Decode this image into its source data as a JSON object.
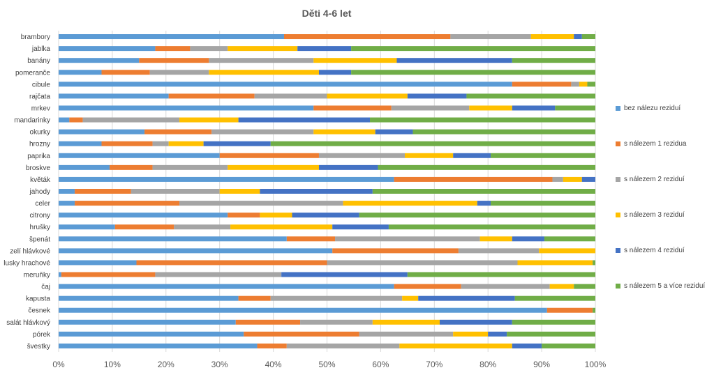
{
  "chart_data": {
    "type": "bar",
    "orientation": "horizontal",
    "stacked": "percent",
    "title": "Děti 4-6 let",
    "xlabel": "",
    "ylabel": "",
    "xlim": [
      0,
      100
    ],
    "x_ticks": [
      "0%",
      "10%",
      "20%",
      "30%",
      "40%",
      "50%",
      "60%",
      "70%",
      "80%",
      "90%",
      "100%"
    ],
    "grid": true,
    "legend_position": "right",
    "categories": [
      "brambory",
      "jablka",
      "banány",
      "pomeranče",
      "cibule",
      "rajčata",
      "mrkev",
      "mandarinky",
      "okurky",
      "hrozny",
      "paprika",
      "broskve",
      "květák",
      "jahody",
      "celer",
      "citrony",
      "hrušky",
      "špenát",
      "zelí hlávkové",
      "lusky hrachové",
      "meruňky",
      "čaj",
      "kapusta",
      "česnek",
      "salát hlávkový",
      "pórek",
      "švestky"
    ],
    "series": [
      {
        "name": "bez nálezu reziduí",
        "color": "#5b9bd5",
        "values": [
          42,
          18,
          15,
          8,
          84.5,
          20.5,
          47.5,
          2,
          16,
          8,
          30,
          9.5,
          62.5,
          3,
          3,
          31.5,
          10.5,
          42.5,
          51,
          14.5,
          0.5,
          62.5,
          33.5,
          91,
          33,
          34.5,
          37
        ]
      },
      {
        "name": "s nálezem 1 rezidua",
        "color": "#ed7d31",
        "values": [
          31,
          6.5,
          13,
          9,
          11,
          16,
          14.5,
          2.5,
          12.5,
          9.5,
          18.5,
          8,
          29.5,
          10.5,
          19.5,
          6,
          11,
          9,
          23.5,
          35.5,
          17.5,
          12.5,
          6,
          8.5,
          12,
          21.5,
          5.5
        ]
      },
      {
        "name": "s nálezem 2 reziduí",
        "color": "#a5a5a5",
        "values": [
          15,
          7,
          19.5,
          11,
          1.5,
          13.5,
          14.5,
          18,
          19,
          3,
          16,
          14,
          2,
          16.5,
          30.5,
          0,
          10.5,
          27,
          15,
          35.5,
          23.5,
          16.5,
          24.5,
          0,
          13.5,
          17.5,
          21
        ]
      },
      {
        "name": "s nálezem 3 reziduí",
        "color": "#ffc000",
        "values": [
          8,
          13,
          15.5,
          20.5,
          1.5,
          15,
          8,
          11,
          11.5,
          6.5,
          9,
          17,
          3.5,
          7.5,
          25,
          6,
          19,
          6,
          10.5,
          14,
          0,
          4.5,
          3,
          0,
          12.5,
          6.5,
          21
        ]
      },
      {
        "name": "s nálezem 4 reziduí",
        "color": "#4472c4",
        "values": [
          1.5,
          10,
          21.5,
          6,
          0,
          11,
          8,
          24.5,
          7,
          12.5,
          7,
          11,
          2.5,
          21,
          2.5,
          12.5,
          10.5,
          6,
          0,
          0,
          23.5,
          0,
          18,
          0,
          13.5,
          3.5,
          5.5
        ]
      },
      {
        "name": "s nálezem 5 a více reziduí",
        "color": "#70ad47",
        "values": [
          2.5,
          45.5,
          15.5,
          45.5,
          1.5,
          24,
          7.5,
          42,
          34,
          60.5,
          19.5,
          40.5,
          0,
          41.5,
          19.5,
          44,
          38.5,
          9.5,
          0,
          0.5,
          35,
          4,
          15,
          0.5,
          15.5,
          16.5,
          10
        ]
      }
    ]
  }
}
